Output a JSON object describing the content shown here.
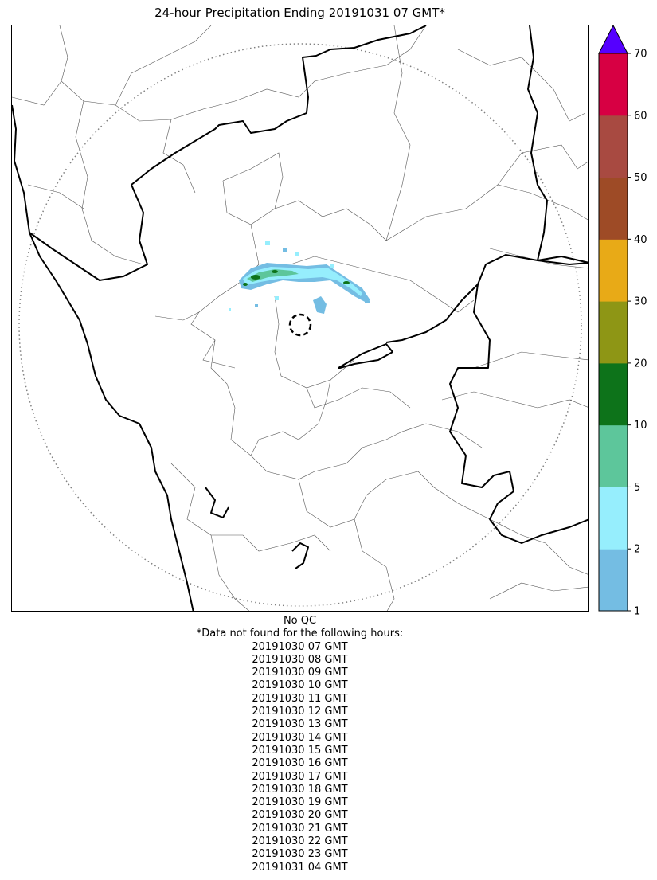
{
  "title": "24-hour Precipitation Ending 20191031 07 GMT*",
  "colorbar": {
    "ticks": [
      "1",
      "2",
      "5",
      "10",
      "20",
      "30",
      "40",
      "50",
      "60",
      "70"
    ],
    "colors": [
      "#74bde3",
      "#96eefd",
      "#5dc69b",
      "#0d731a",
      "#8e9615",
      "#e8aa17",
      "#9e4b26",
      "#a84a41",
      "#d70043"
    ],
    "extend_color": "#5500ff"
  },
  "qc_label": "No QC",
  "missing_header": "*Data not found for the following hours:",
  "missing_hours": [
    "20191030 07 GMT",
    "20191030 08 GMT",
    "20191030 09 GMT",
    "20191030 10 GMT",
    "20191030 11 GMT",
    "20191030 12 GMT",
    "20191030 13 GMT",
    "20191030 14 GMT",
    "20191030 15 GMT",
    "20191030 16 GMT",
    "20191030 17 GMT",
    "20191030 18 GMT",
    "20191030 19 GMT",
    "20191030 20 GMT",
    "20191030 21 GMT",
    "20191030 22 GMT",
    "20191030 23 GMT",
    "20191031 04 GMT"
  ]
}
